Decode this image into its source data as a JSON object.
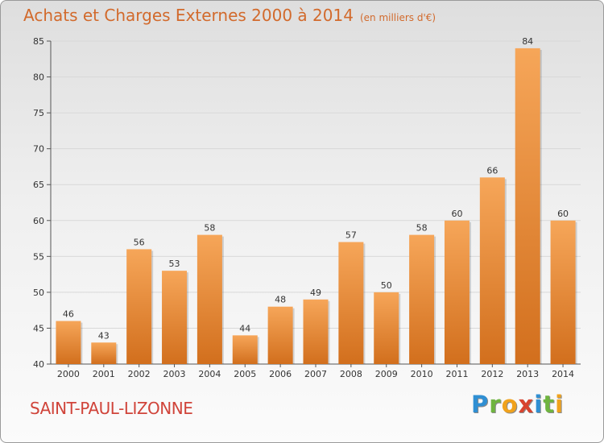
{
  "title": "Achats et Charges Externes 2000 à 2014",
  "subtitle": "(en milliers d'€)",
  "commune": "SAINT-PAUL-LIZONNE",
  "logo": "Proxiti",
  "colors": {
    "bar_light": "#f6a659",
    "bar_dark": "#d26f1d",
    "title": "#d26a2c",
    "commune": "#d0443a",
    "grid": "#d8d8d8"
  },
  "chart_data": {
    "type": "bar",
    "categories": [
      "2000",
      "2001",
      "2002",
      "2003",
      "2004",
      "2005",
      "2006",
      "2007",
      "2008",
      "2009",
      "2010",
      "2011",
      "2012",
      "2013",
      "2014"
    ],
    "values": [
      46,
      43,
      56,
      53,
      58,
      44,
      48,
      49,
      57,
      50,
      58,
      60,
      66,
      84,
      60
    ],
    "title": "Achats et Charges Externes 2000 à 2014",
    "subtitle": "(en milliers d'€)",
    "xlabel": "",
    "ylabel": "",
    "ylim": [
      40,
      85
    ],
    "yticks": [
      40,
      45,
      50,
      55,
      60,
      65,
      70,
      75,
      80,
      85
    ],
    "grid": true,
    "legend": "none"
  }
}
